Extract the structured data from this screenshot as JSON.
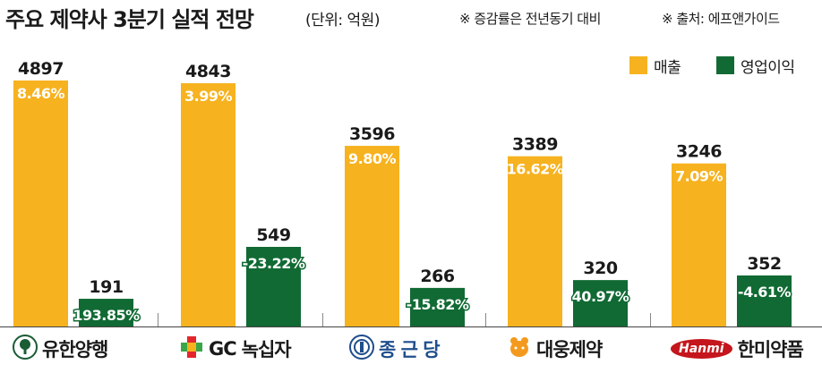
{
  "header": {
    "title": "주요 제약사 3분기 실적 전망",
    "unit": "(단위: 억원)",
    "note_change": "※ 증감률은 전년동기 대비",
    "note_source": "※ 출처: 에프앤가이드"
  },
  "colors": {
    "revenue": "#f6b21f",
    "operating_profit": "#116a34"
  },
  "chart_data": {
    "type": "bar",
    "title": "주요 제약사 3분기 실적 전망",
    "unit": "(단위: 억원)",
    "categories": [
      "유한양행",
      "GC녹십자",
      "종근당",
      "대웅제약",
      "한미약품"
    ],
    "series": [
      {
        "name": "매출",
        "values": [
          4897,
          4843,
          3596,
          3389,
          3246
        ],
        "value_labels": [
          "4897",
          "4843",
          "3596",
          "3389",
          "3246"
        ],
        "change_labels": [
          "8.46%",
          "3.99%",
          "9.80%",
          "16.62%",
          "7.09%"
        ]
      },
      {
        "name": "영업이익",
        "values": [
          191,
          549,
          266,
          320,
          352
        ],
        "value_labels": [
          "191",
          "549",
          "266",
          "320",
          "352"
        ],
        "change_labels": [
          "193.85%",
          "-23.22%",
          "-15.82%",
          "40.97%",
          "-4.61%"
        ]
      }
    ],
    "axis_scale": "two bar groups drawn on independent scales (no y-axis shown)",
    "grid": false,
    "legend_position": "top-right"
  },
  "companies": [
    {
      "name": "유한양행",
      "logo_icon": "tree-emblem-icon"
    },
    {
      "name": "녹십자",
      "logo_prefix": "GC",
      "logo_icon": "cross-icon"
    },
    {
      "name": "종 근 당",
      "logo_icon": "bell-emblem-icon"
    },
    {
      "name": "대웅제약",
      "logo_icon": "bear-icon"
    },
    {
      "name": "한미약품",
      "logo_badge": "Hanmi"
    }
  ]
}
